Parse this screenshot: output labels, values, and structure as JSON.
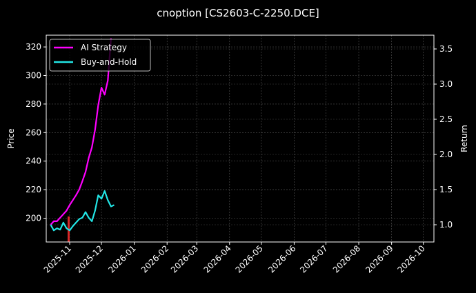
{
  "chart_data": {
    "type": "line",
    "title": "cnoption [CS2603-C-2250.DCE]",
    "xlabel": "",
    "ylabel": "Price",
    "ylabel_right": "Return",
    "x_tick_labels": [
      "2025-11",
      "2025-12",
      "2026-01",
      "2026-02",
      "2026-03",
      "2026-04",
      "2026-05",
      "2026-06",
      "2026-07",
      "2026-08",
      "2026-09",
      "2026-10"
    ],
    "y_ticks_left": [
      200,
      220,
      240,
      260,
      280,
      300,
      320
    ],
    "y_ticks_right": [
      "1.0",
      "1.5",
      "2.0",
      "2.5",
      "3.0",
      "3.5"
    ],
    "ylim_left": [
      184,
      328
    ],
    "ylim_right": [
      0.75,
      3.68
    ],
    "grid": true,
    "legend_position": "upper left",
    "legend": [
      "AI Strategy",
      "Buy-and-Hold"
    ],
    "series": [
      {
        "name": "AI Strategy",
        "color": "#ff00ff",
        "axis": "right",
        "x": [
          "2025-10-14",
          "2025-10-17",
          "2025-10-20",
          "2025-10-23",
          "2025-10-26",
          "2025-10-29",
          "2025-11-01",
          "2025-11-04",
          "2025-11-07",
          "2025-11-10",
          "2025-11-13",
          "2025-11-16",
          "2025-11-19",
          "2025-11-22",
          "2025-11-25",
          "2025-11-28",
          "2025-12-01",
          "2025-12-04",
          "2025-12-07",
          "2025-12-10"
        ],
        "values": [
          1.0,
          1.05,
          1.05,
          1.1,
          1.15,
          1.2,
          1.28,
          1.35,
          1.42,
          1.5,
          1.62,
          1.75,
          1.95,
          2.1,
          2.35,
          2.7,
          2.95,
          2.85,
          3.05,
          3.65
        ]
      },
      {
        "name": "Buy-and-Hold",
        "color": "#22e5e5",
        "axis": "right",
        "x": [
          "2025-10-14",
          "2025-10-17",
          "2025-10-20",
          "2025-10-23",
          "2025-10-26",
          "2025-10-29",
          "2025-11-01",
          "2025-11-04",
          "2025-11-07",
          "2025-11-10",
          "2025-11-13",
          "2025-11-16",
          "2025-11-19",
          "2025-11-22",
          "2025-11-25",
          "2025-11-28",
          "2025-12-01",
          "2025-12-04",
          "2025-12-07",
          "2025-12-10",
          "2025-12-13"
        ],
        "values": [
          1.0,
          0.92,
          0.95,
          0.93,
          1.03,
          0.95,
          0.92,
          0.98,
          1.03,
          1.08,
          1.1,
          1.18,
          1.1,
          1.05,
          1.2,
          1.42,
          1.37,
          1.48,
          1.35,
          1.26,
          1.28
        ]
      },
      {
        "name": "Price candle",
        "color": "#d62728",
        "axis": "left",
        "x": [
          "2025-10-31"
        ],
        "values": [
          200
        ]
      }
    ]
  }
}
